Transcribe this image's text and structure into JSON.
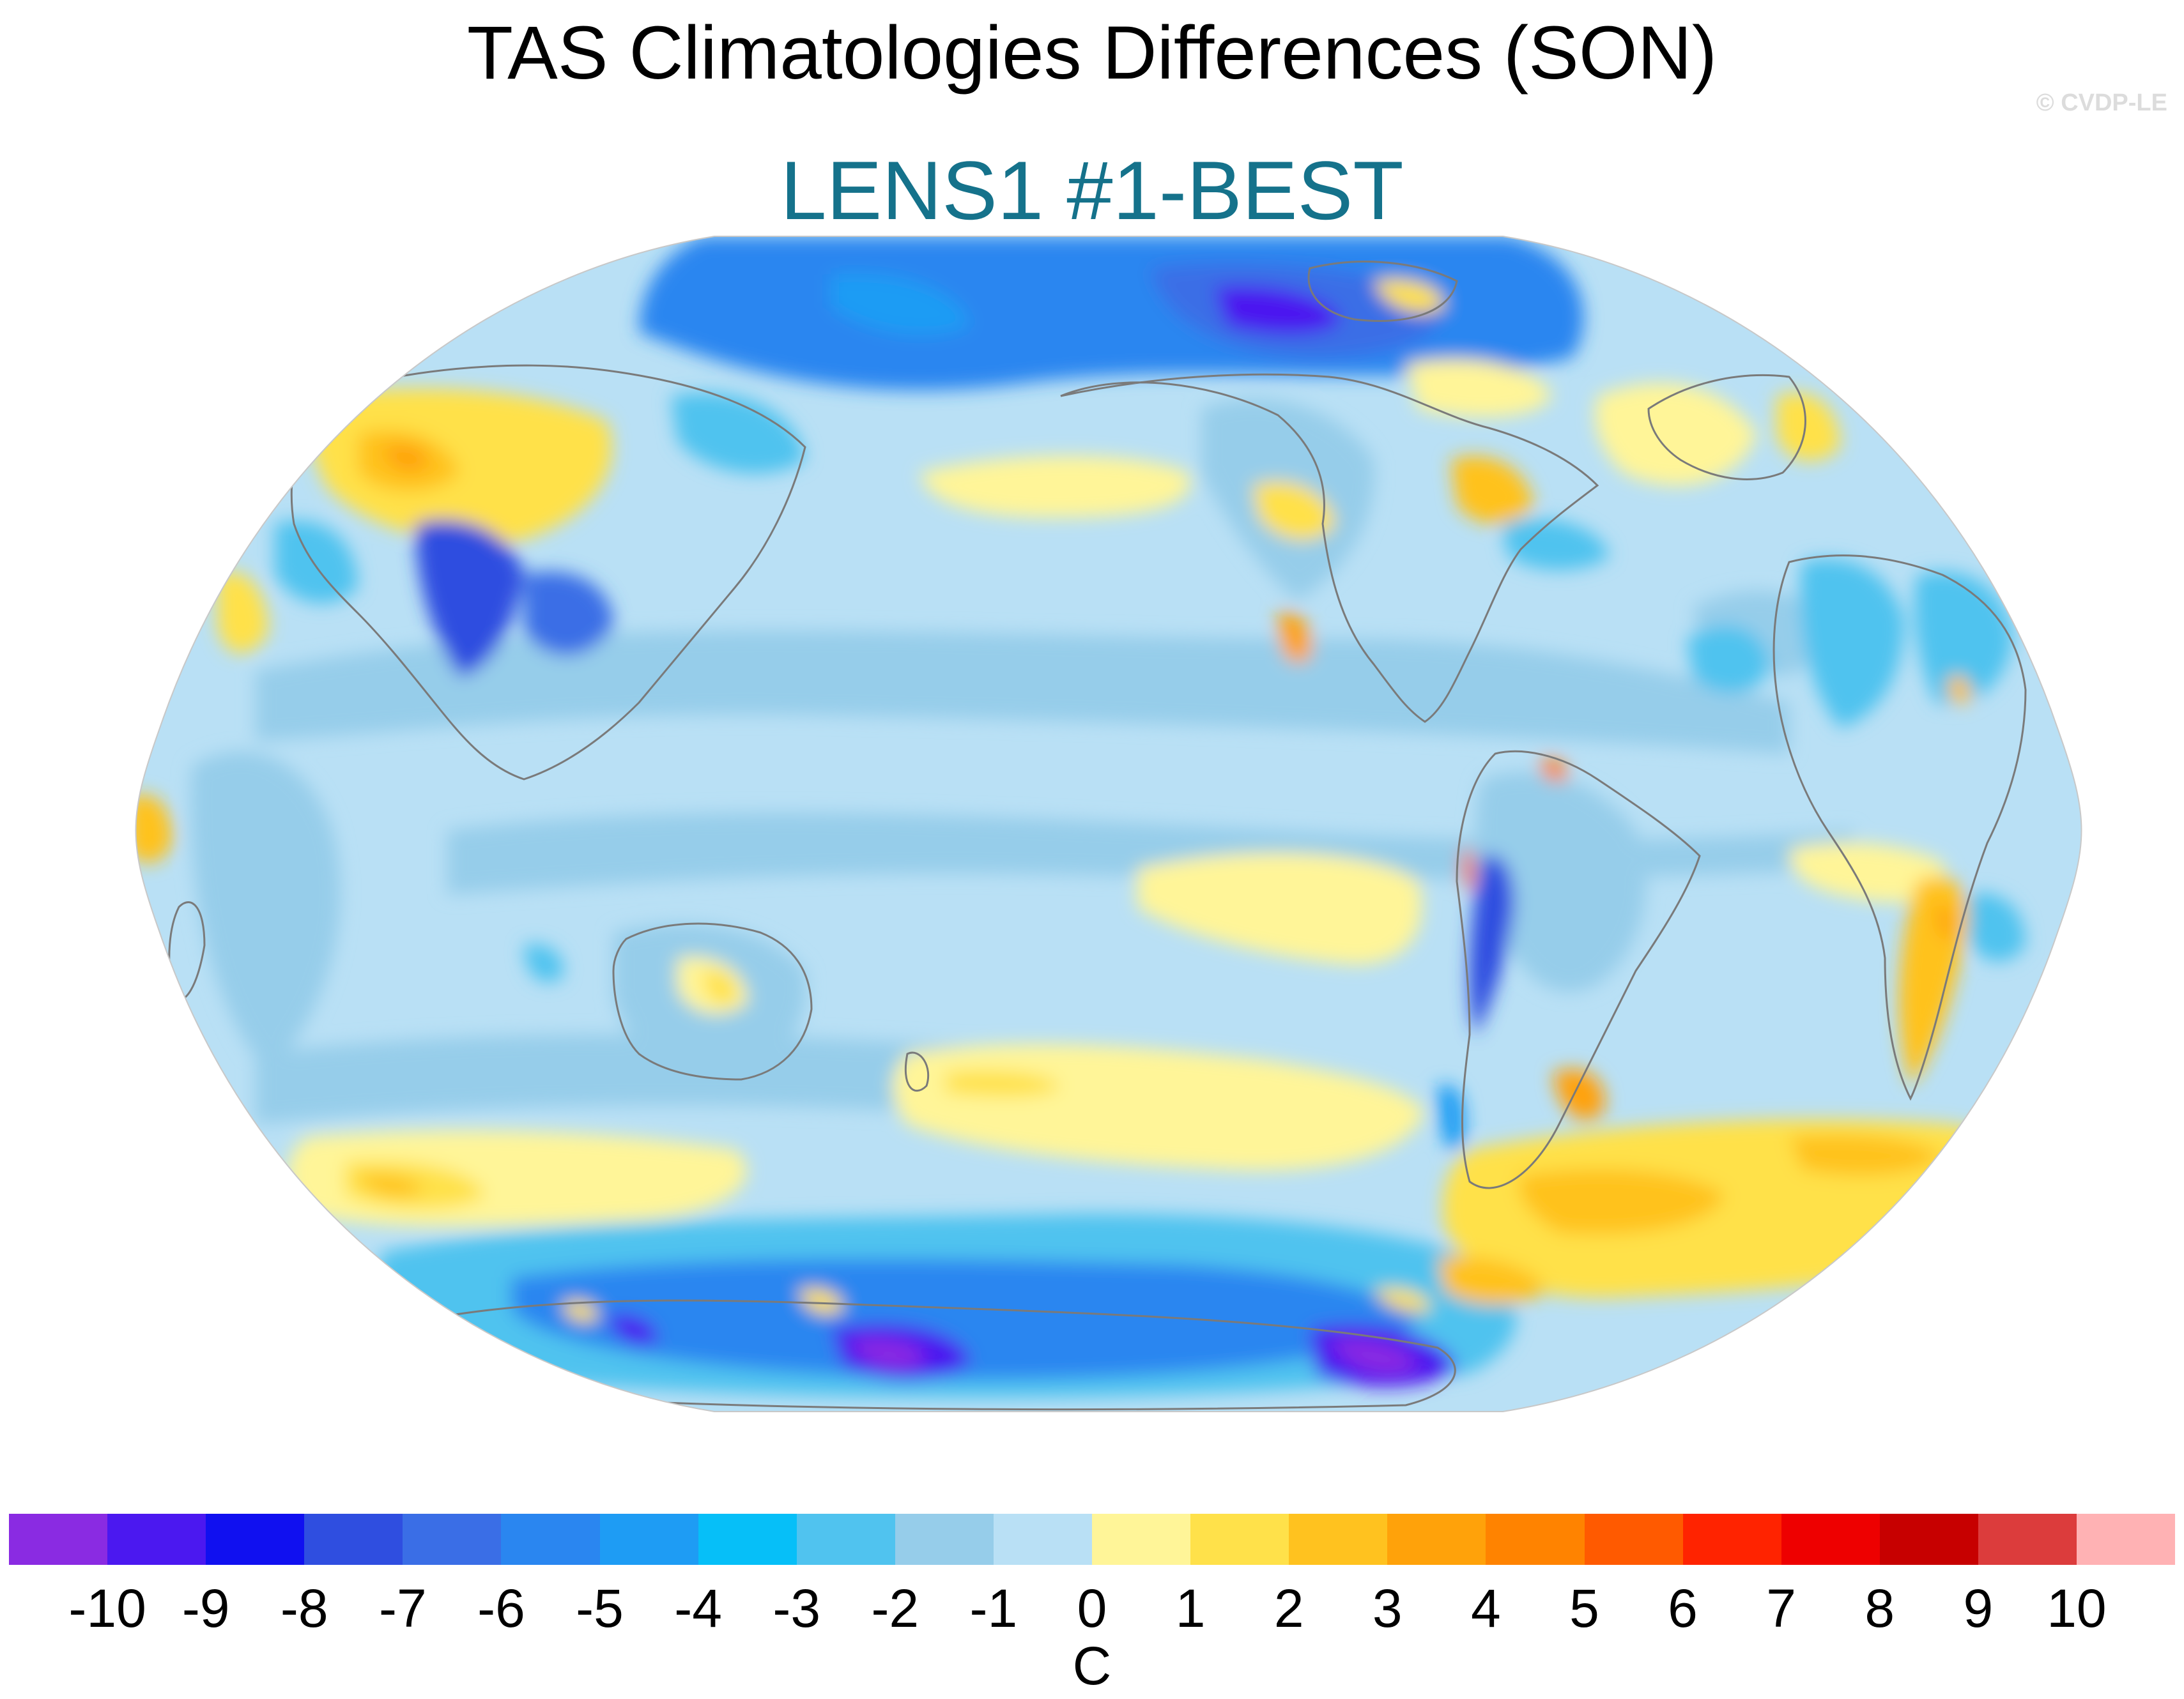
{
  "title": "TAS Climatologies Differences (SON)",
  "subtitle": "LENS1 #1-BEST",
  "watermark": "© CVDP-LE",
  "units": "C",
  "colors": {
    "subtitle": "#15728b",
    "land_outline": "#7a7a7a",
    "ocean_near_zero_neg": "#b9e0f5",
    "map_border": "#c8c8c8"
  },
  "colorbar": {
    "colors": [
      "#8a2be2",
      "#4b18f0",
      "#1010f0",
      "#2f4ee0",
      "#3a6ee6",
      "#2a86f0",
      "#1e9cf4",
      "#06bff8",
      "#50c3ef",
      "#96cdea",
      "#b9e0f5",
      "#fff598",
      "#ffe14a",
      "#ffc21f",
      "#ffa20a",
      "#ff8300",
      "#ff5a00",
      "#ff2300",
      "#ee0000",
      "#c70000",
      "#dc3c3c",
      "#ffb2b4"
    ],
    "tick_labels": [
      "-10",
      "-9",
      "-8",
      "-7",
      "-6",
      "-5",
      "-4",
      "-3",
      "-2",
      "-1",
      "0",
      "1",
      "2",
      "3",
      "4",
      "5",
      "6",
      "7",
      "8",
      "9",
      "10"
    ]
  }
}
